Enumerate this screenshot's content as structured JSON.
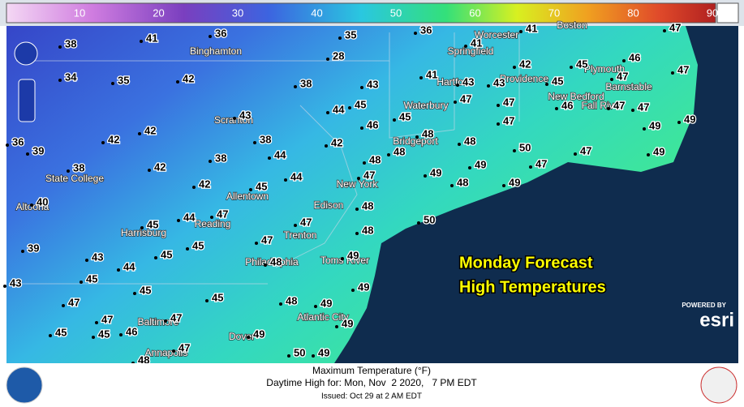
{
  "legend": {
    "labels": [
      "10",
      "20",
      "30",
      "40",
      "50",
      "60",
      "70",
      "80",
      "90"
    ]
  },
  "overlay": {
    "line1": "Monday Forecast",
    "line2": "High Temperatures"
  },
  "esri": {
    "powered": "POWERED BY",
    "brand": "esri"
  },
  "footer": {
    "title": "Maximum Temperature (°F)",
    "subtitle": "Daytime High for: Mon, Nov  2 2020,   7 PM EDT",
    "issued": "Issued: Oct 29 at 2 AM EDT"
  },
  "cities": [
    "Worcester",
    "Boston",
    "Binghamton",
    "Springfield",
    "Providence",
    "Plymouth",
    "Barnstable",
    "Hartford",
    "Waterbury",
    "New Bedford",
    "Fall River",
    "Scranton",
    "Bridgeport",
    "State College",
    "Allentown",
    "New York",
    "Altoona",
    "Edison",
    "Reading",
    "Harrisburg",
    "Trenton",
    "Toms River",
    "Philadelphia",
    "Atlantic City",
    "Baltimore",
    "Dover",
    "Annapolis"
  ],
  "temperatures": [
    38,
    41,
    36,
    35,
    36,
    41,
    41,
    47,
    28,
    34,
    35,
    42,
    38,
    43,
    41,
    43,
    43,
    42,
    45,
    46,
    47,
    45,
    47,
    43,
    44,
    45,
    47,
    47,
    46,
    47,
    47,
    46,
    45,
    47,
    49,
    49,
    36,
    39,
    42,
    42,
    38,
    42,
    44,
    48,
    48,
    48,
    48,
    50,
    47,
    49,
    38,
    42,
    38,
    42,
    45,
    44,
    47,
    49,
    49,
    47,
    48,
    49,
    40,
    48,
    50,
    45,
    44,
    47,
    47,
    48,
    39,
    43,
    45,
    45,
    44,
    47,
    48,
    49,
    45,
    45,
    43,
    49,
    45,
    48,
    49,
    47,
    47,
    47,
    45,
    45,
    46,
    49,
    49,
    47,
    48,
    50,
    49
  ]
}
